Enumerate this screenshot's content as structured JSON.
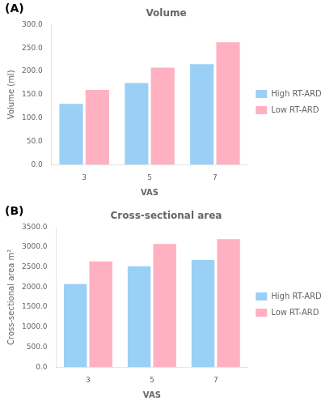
{
  "chart_data": [
    {
      "type": "bar",
      "title": "Volume",
      "annotations": [
        "(A)"
      ],
      "x_label": "VAS",
      "y_label": "Volume (ml)",
      "categories": [
        "3",
        "5",
        "7"
      ],
      "series": [
        {
          "name": "High RT-ARD",
          "values": [
            130,
            175,
            215
          ]
        },
        {
          "name": "Low RT-ARD",
          "values": [
            160,
            208,
            262
          ]
        }
      ],
      "ylim": [
        0,
        300
      ],
      "yticks": [
        {
          "value": 0,
          "label": "0.0"
        },
        {
          "value": 50,
          "label": "50.0"
        },
        {
          "value": 100,
          "label": "100.0"
        },
        {
          "value": 150,
          "label": "150.0"
        },
        {
          "value": 200,
          "label": "200.0"
        },
        {
          "value": 250,
          "label": "250.0"
        },
        {
          "value": 300,
          "label": "300.0"
        }
      ],
      "grid": false,
      "legend": "right"
    },
    {
      "type": "bar",
      "title": "Cross-sectional area",
      "annotations": [
        "(B)"
      ],
      "x_label": "VAS",
      "y_label": "Cross-sectional area m²",
      "categories": [
        "3",
        "5",
        "7"
      ],
      "series": [
        {
          "name": "High RT-ARD",
          "values": [
            2075,
            2520,
            2680
          ]
        },
        {
          "name": "Low RT-ARD",
          "values": [
            2640,
            3080,
            3200
          ]
        }
      ],
      "ylim": [
        0,
        3500
      ],
      "yticks": [
        {
          "value": 0,
          "label": "0.0"
        },
        {
          "value": 500,
          "label": "500.0"
        },
        {
          "value": 1000,
          "label": "1000.0"
        },
        {
          "value": 1500,
          "label": "1500.0"
        },
        {
          "value": 2000,
          "label": "2000.0"
        },
        {
          "value": 2500,
          "label": "2500.0"
        },
        {
          "value": 3000,
          "label": "3000.0"
        },
        {
          "value": 3500,
          "label": "3500.0"
        }
      ],
      "grid": false,
      "legend": "right"
    }
  ]
}
